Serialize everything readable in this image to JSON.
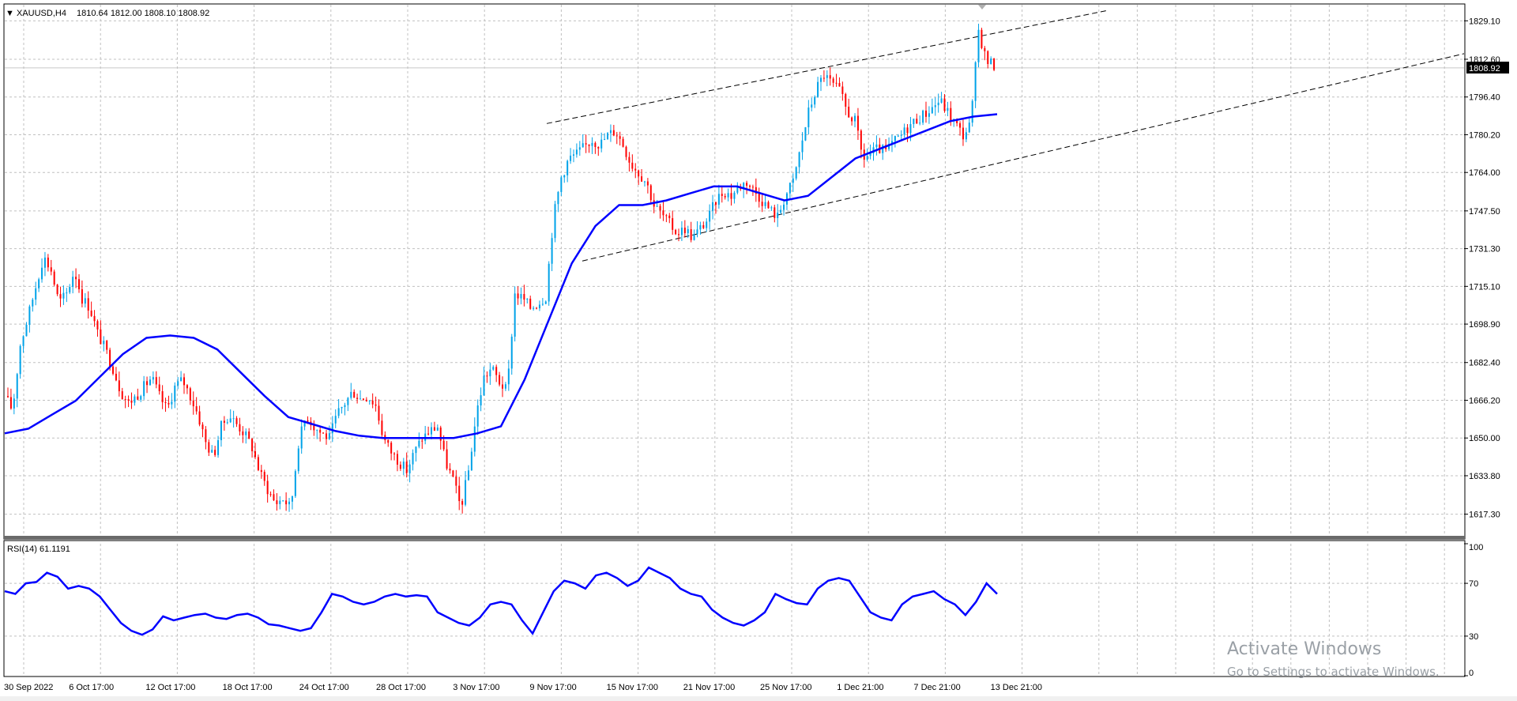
{
  "chart_data": [
    {
      "type": "candlestick",
      "title": "XAUUSD,H4",
      "ohlc_header": "1810.64 1812.00 1808.10 1808.92",
      "current_price": 1808.92,
      "ylim": [
        1608,
        1836
      ],
      "y_ticks": [
        1829.1,
        1812.6,
        1796.4,
        1780.2,
        1764.0,
        1747.5,
        1731.3,
        1715.1,
        1698.9,
        1682.4,
        1666.2,
        1650.0,
        1633.8,
        1617.3
      ],
      "y_tick_labels": [
        "1829.10",
        "1812.60",
        "1796.40",
        "1780.20",
        "1764.00",
        "1747.50",
        "1731.30",
        "1715.10",
        "1698.90",
        "1682.40",
        "1666.20",
        "1650.00",
        "1633.80",
        "1617.30"
      ],
      "x_tick_labels": [
        "30 Sep 2022",
        "6 Oct 17:00",
        "12 Oct 17:00",
        "18 Oct 17:00",
        "24 Oct 17:00",
        "28 Oct 17:00",
        "3 Nov 17:00",
        "9 Nov 17:00",
        "15 Nov 17:00",
        "21 Nov 17:00",
        "25 Nov 17:00",
        "1 Dec 21:00",
        "7 Dec 21:00",
        "13 Dec 21:00"
      ],
      "price_path": [
        1668,
        1662,
        1690,
        1702,
        1715,
        1728,
        1722,
        1708,
        1712,
        1722,
        1710,
        1706,
        1695,
        1688,
        1680,
        1670,
        1665,
        1668,
        1672,
        1676,
        1668,
        1662,
        1672,
        1675,
        1668,
        1660,
        1648,
        1642,
        1655,
        1660,
        1656,
        1652,
        1646,
        1635,
        1628,
        1622,
        1624,
        1620,
        1648,
        1660,
        1655,
        1652,
        1650,
        1660,
        1665,
        1670,
        1667,
        1668,
        1664,
        1650,
        1644,
        1640,
        1636,
        1644,
        1650,
        1653,
        1655,
        1640,
        1632,
        1620,
        1636,
        1660,
        1676,
        1680,
        1674,
        1670,
        1712,
        1710,
        1706,
        1708,
        1711,
        1745,
        1762,
        1770,
        1772,
        1775,
        1778,
        1776,
        1780,
        1782,
        1776,
        1768,
        1764,
        1760,
        1750,
        1746,
        1742,
        1738,
        1740,
        1736,
        1740,
        1744,
        1752,
        1756,
        1754,
        1758,
        1760,
        1756,
        1752,
        1748,
        1745,
        1754,
        1760,
        1775,
        1790,
        1800,
        1806,
        1802,
        1799,
        1790,
        1786,
        1770,
        1772,
        1774,
        1773,
        1777,
        1780,
        1784,
        1787,
        1789,
        1792,
        1795,
        1790,
        1785,
        1780,
        1785,
        1825,
        1812,
        1810
      ],
      "ma_path": [
        1652,
        1654,
        1660,
        1666,
        1676,
        1686,
        1693,
        1694,
        1693,
        1688,
        1678,
        1668,
        1659,
        1656,
        1653,
        1651,
        1650,
        1650,
        1650,
        1650,
        1652,
        1655,
        1675,
        1700,
        1725,
        1741,
        1750,
        1750,
        1752,
        1755,
        1758,
        1758,
        1755,
        1752,
        1754,
        1762,
        1770,
        1774,
        1778,
        1782,
        1786,
        1788,
        1789
      ],
      "channel_upper": [
        [
          1785,
          1836
        ],
        [
          1828,
          1846
        ]
      ],
      "channel_lower": [
        [
          1726,
          1720
        ],
        [
          1775,
          1815
        ]
      ]
    },
    {
      "type": "line",
      "title": "RSI(14) 61.1191",
      "ylim": [
        0,
        100
      ],
      "y_ticks": [
        100,
        70,
        30,
        0
      ],
      "y_tick_labels": [
        "100",
        "70",
        "30",
        "0"
      ],
      "values": [
        64,
        62,
        70,
        71,
        78,
        75,
        66,
        68,
        66,
        60,
        50,
        40,
        34,
        31,
        35,
        45,
        42,
        44,
        46,
        47,
        44,
        43,
        46,
        47,
        44,
        39,
        38,
        36,
        34,
        36,
        48,
        62,
        60,
        56,
        54,
        56,
        60,
        62,
        60,
        61,
        60,
        48,
        44,
        40,
        38,
        44,
        54,
        56,
        54,
        42,
        32,
        48,
        64,
        72,
        70,
        66,
        76,
        78,
        74,
        68,
        72,
        82,
        78,
        74,
        66,
        62,
        60,
        50,
        44,
        40,
        38,
        42,
        48,
        62,
        58,
        55,
        54,
        66,
        72,
        74,
        72,
        60,
        48,
        44,
        42,
        54,
        60,
        62,
        64,
        58,
        54,
        46,
        56,
        70,
        62
      ]
    }
  ],
  "watermark": {
    "line1": "Activate Windows",
    "line2": "Go to Settings to activate Windows."
  },
  "colors": {
    "bull": "#00a2e8",
    "bear": "#ff0000",
    "ma": "#0000ff",
    "grid": "#c0c0c0",
    "axis": "#000000",
    "tag_bg": "#000000",
    "tag_fg": "#ffffff"
  }
}
